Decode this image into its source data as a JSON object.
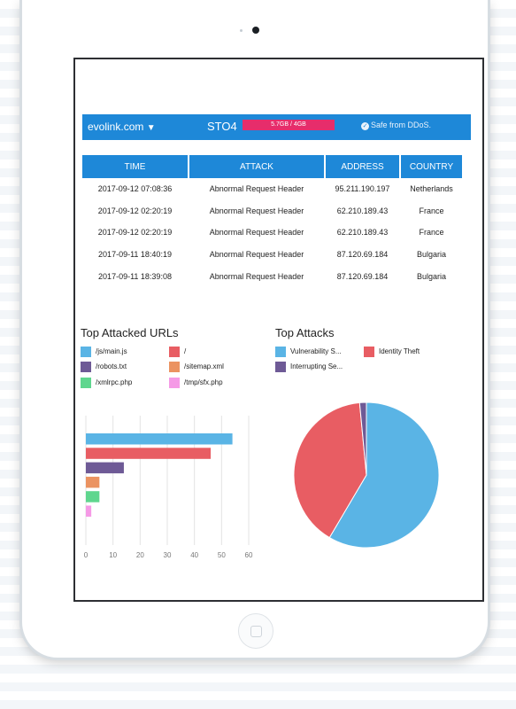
{
  "header": {
    "site": "evolink.com",
    "site_caret": "▼",
    "storage_label": "STO4",
    "usage": "5.7GB / 4GB",
    "status": "Safe from DDoS."
  },
  "table": {
    "columns": [
      "TIME",
      "ATTACK",
      "ADDRESS",
      "COUNTRY"
    ],
    "rows": [
      [
        "2017-09-12 07:08:36",
        "Abnormal Request Header",
        "95.211.190.197",
        "Netherlands"
      ],
      [
        "2017-09-12 02:20:19",
        "Abnormal Request Header",
        "62.210.189.43",
        "France"
      ],
      [
        "2017-09-12 02:20:19",
        "Abnormal Request Header",
        "62.210.189.43",
        "France"
      ],
      [
        "2017-09-11 18:40:19",
        "Abnormal Request Header",
        "87.120.69.184",
        "Bulgaria"
      ],
      [
        "2017-09-11 18:39:08",
        "Abnormal Request Header",
        "87.120.69.184",
        "Bulgaria"
      ]
    ]
  },
  "urls": {
    "title": "Top Attacked URLs",
    "legend": [
      {
        "label": "/js/main.js",
        "color": "#5ab4e5"
      },
      {
        "label": "/",
        "color": "#e85d63"
      },
      {
        "label": "/robots.txt",
        "color": "#6e5a96"
      },
      {
        "label": "/sitemap.xml",
        "color": "#eb9361"
      },
      {
        "label": "/xmlrpc.php",
        "color": "#5fd68e"
      },
      {
        "label": "/tmp/sfx.php",
        "color": "#f59ae6"
      }
    ]
  },
  "attacks": {
    "title": "Top Attacks",
    "legend": [
      {
        "label": "Vulnerability S...",
        "color": "#5ab4e5"
      },
      {
        "label": "Identity Theft",
        "color": "#e85d63"
      },
      {
        "label": "Interrupting Se...",
        "color": "#6e5a96"
      }
    ]
  },
  "chart_data": [
    {
      "type": "bar",
      "orientation": "horizontal",
      "categories": [
        "/js/main.js",
        "/",
        "/robots.txt",
        "/sitemap.xml",
        "/xmlrpc.php",
        "/tmp/sfx.php"
      ],
      "values": [
        54,
        46,
        14,
        5,
        5,
        2
      ],
      "colors": [
        "#5ab4e5",
        "#e85d63",
        "#6e5a96",
        "#eb9361",
        "#5fd68e",
        "#f59ae6"
      ],
      "xlim": [
        0,
        60
      ],
      "xticks": [
        0,
        10,
        20,
        30,
        40,
        50,
        60
      ],
      "grid": true
    },
    {
      "type": "pie",
      "categories": [
        "Vulnerability S...",
        "Identity Theft",
        "Interrupting Se..."
      ],
      "values": [
        58.5,
        40,
        1.5
      ],
      "colors": [
        "#5ab4e5",
        "#e85d63",
        "#6e5a96"
      ]
    }
  ]
}
